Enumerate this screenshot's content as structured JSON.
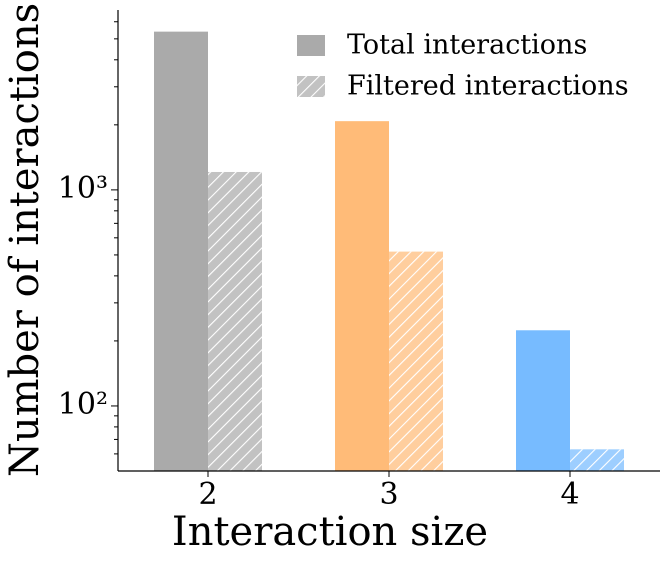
{
  "chart_data": {
    "type": "bar",
    "xlabel": "Interaction size",
    "ylabel": "Number of interactions",
    "categories": [
      "2",
      "3",
      "4"
    ],
    "series": [
      {
        "name": "Total interactions",
        "color": "#aaaaaa",
        "colors": [
          "#aaaaaa",
          "#ffbb78",
          "#77bbff"
        ],
        "values": [
          5400,
          2080,
          224
        ]
      },
      {
        "name": "Filtered interactions",
        "color": "#aaaaaa",
        "colors": [
          "#aaaaaa",
          "#ffbb78",
          "#77bbff"
        ],
        "hatch": true,
        "values": [
          1210,
          518,
          63
        ]
      }
    ],
    "log_y": true,
    "ylim": [
      50,
      6800
    ],
    "yticks": [
      {
        "value": 100,
        "label": "10²"
      },
      {
        "value": 1000,
        "label": "10³"
      }
    ],
    "minor_yticks": [
      60,
      70,
      80,
      90,
      200,
      300,
      400,
      500,
      600,
      700,
      800,
      900,
      2000,
      3000,
      4000,
      5000,
      6000
    ],
    "legend": "upper right"
  }
}
